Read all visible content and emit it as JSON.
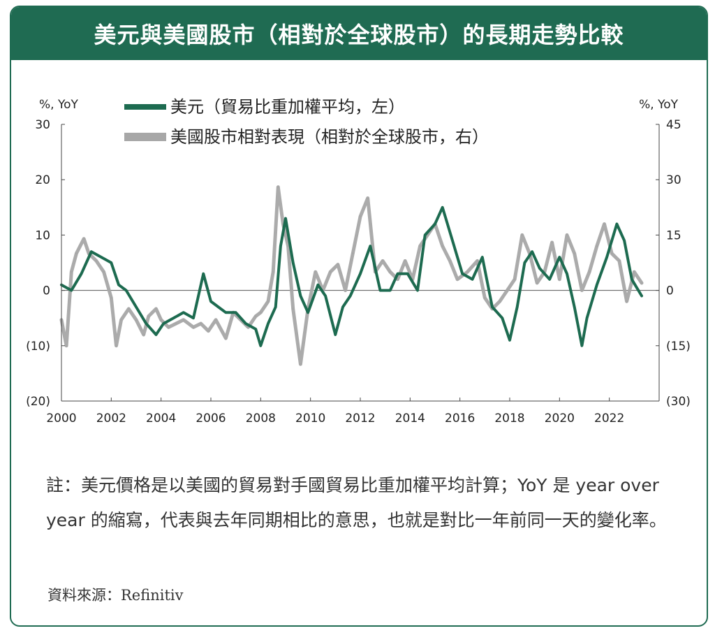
{
  "title": "美元與美國股市（相對於全球股市）的長期走勢比較",
  "note": "註：美元價格是以美國的貿易對手國貿易比重加權平均計算；YoY 是 year over year 的縮寫，代表與去年同期相比的意思，也就是對比一年前同一天的變化率。",
  "source": "資料來源：Refinitiv",
  "colors": {
    "brand": "#1f6b52",
    "dollar": "#1d6b50",
    "equity": "#a7a7a7"
  },
  "chart_data": {
    "type": "line",
    "title": "美元與美國股市（相對於全球股市）的長期走勢比較",
    "xlabel": "",
    "ylabel_left": "%, YoY",
    "ylabel_right": "%, YoY",
    "x_ticks": [
      "2000",
      "2002",
      "2004",
      "2006",
      "2008",
      "2010",
      "2012",
      "2014",
      "2016",
      "2018",
      "2020",
      "2022"
    ],
    "x_range": [
      2000,
      2024
    ],
    "ylim_left": [
      -20,
      30
    ],
    "ylim_right": [
      -30,
      45
    ],
    "y_ticks_left": [
      "(20)",
      "(10)",
      "0",
      "10",
      "20",
      "30"
    ],
    "y_ticks_right": [
      "(30)",
      "(15)",
      "0",
      "15",
      "30",
      "45"
    ],
    "legend": [
      {
        "name": "美元（貿易比重加權平均，左）",
        "axis": "left"
      },
      {
        "name": "美國股市相對表現（相對於全球股市，右）",
        "axis": "right"
      }
    ],
    "series": [
      {
        "name": "美元（貿易比重加權平均，左）",
        "axis": "left",
        "x": [
          2000.0,
          2000.4,
          2000.8,
          2001.2,
          2001.6,
          2002.0,
          2002.3,
          2002.6,
          2003.0,
          2003.4,
          2003.8,
          2004.1,
          2004.5,
          2004.9,
          2005.3,
          2005.7,
          2006.0,
          2006.3,
          2006.6,
          2007.0,
          2007.4,
          2007.8,
          2008.0,
          2008.3,
          2008.6,
          2008.8,
          2009.0,
          2009.3,
          2009.6,
          2009.9,
          2010.3,
          2010.6,
          2011.0,
          2011.3,
          2011.6,
          2012.0,
          2012.4,
          2012.8,
          2013.2,
          2013.5,
          2013.9,
          2014.3,
          2014.6,
          2015.0,
          2015.3,
          2015.7,
          2016.1,
          2016.5,
          2016.9,
          2017.3,
          2017.7,
          2018.0,
          2018.3,
          2018.6,
          2018.9,
          2019.2,
          2019.6,
          2020.0,
          2020.3,
          2020.6,
          2020.9,
          2021.1,
          2021.5,
          2021.9,
          2022.3,
          2022.6,
          2022.9,
          2023.3
        ],
        "values": [
          1,
          0,
          3,
          7,
          6,
          5,
          1,
          0,
          -3,
          -6,
          -8,
          -6,
          -5,
          -4,
          -5,
          3,
          -2,
          -3,
          -4,
          -4,
          -6,
          -7,
          -10,
          -6,
          -3,
          8,
          13,
          5,
          -1,
          -4,
          1,
          -1,
          -8,
          -3,
          -1,
          3,
          8,
          0,
          0,
          3,
          3,
          0,
          10,
          12,
          15,
          9,
          3,
          2,
          6,
          -3,
          -5,
          -9,
          -3,
          5,
          7,
          4,
          2,
          6,
          3,
          -3,
          -10,
          -5,
          1,
          6,
          12,
          9,
          2,
          -1
        ]
      },
      {
        "name": "美國股市相對表現（相對於全球股市，右）",
        "axis": "right",
        "x": [
          2000.0,
          2000.2,
          2000.4,
          2000.6,
          2000.9,
          2001.1,
          2001.4,
          2001.7,
          2002.0,
          2002.2,
          2002.4,
          2002.7,
          2003.0,
          2003.3,
          2003.5,
          2003.8,
          2004.0,
          2004.3,
          2004.6,
          2004.9,
          2005.3,
          2005.6,
          2005.9,
          2006.2,
          2006.6,
          2006.9,
          2007.2,
          2007.5,
          2007.8,
          2008.0,
          2008.3,
          2008.5,
          2008.7,
          2008.9,
          2009.1,
          2009.3,
          2009.6,
          2009.9,
          2010.2,
          2010.5,
          2010.8,
          2011.1,
          2011.4,
          2011.7,
          2012.0,
          2012.3,
          2012.6,
          2012.9,
          2013.2,
          2013.5,
          2013.8,
          2014.1,
          2014.4,
          2014.7,
          2015.0,
          2015.3,
          2015.6,
          2015.9,
          2016.3,
          2016.7,
          2017.0,
          2017.3,
          2017.6,
          2017.9,
          2018.2,
          2018.5,
          2018.8,
          2019.1,
          2019.4,
          2019.7,
          2020.0,
          2020.3,
          2020.6,
          2020.9,
          2021.2,
          2021.5,
          2021.8,
          2022.1,
          2022.4,
          2022.7,
          2023.0,
          2023.3
        ],
        "values": [
          -8,
          -15,
          5,
          10,
          14,
          10,
          8,
          5,
          -2,
          -15,
          -8,
          -5,
          -8,
          -12,
          -7,
          -5,
          -8,
          -10,
          -9,
          -8,
          -10,
          -9,
          -11,
          -8,
          -13,
          -6,
          -8,
          -10,
          -7,
          -6,
          -3,
          5,
          28,
          18,
          12,
          -5,
          -20,
          -5,
          5,
          0,
          5,
          7,
          0,
          10,
          20,
          25,
          5,
          8,
          5,
          3,
          8,
          3,
          12,
          15,
          18,
          12,
          8,
          3,
          5,
          8,
          -2,
          -5,
          -3,
          0,
          3,
          15,
          10,
          2,
          5,
          13,
          3,
          15,
          10,
          0,
          5,
          12,
          18,
          10,
          8,
          -3,
          5,
          2
        ]
      }
    ]
  }
}
